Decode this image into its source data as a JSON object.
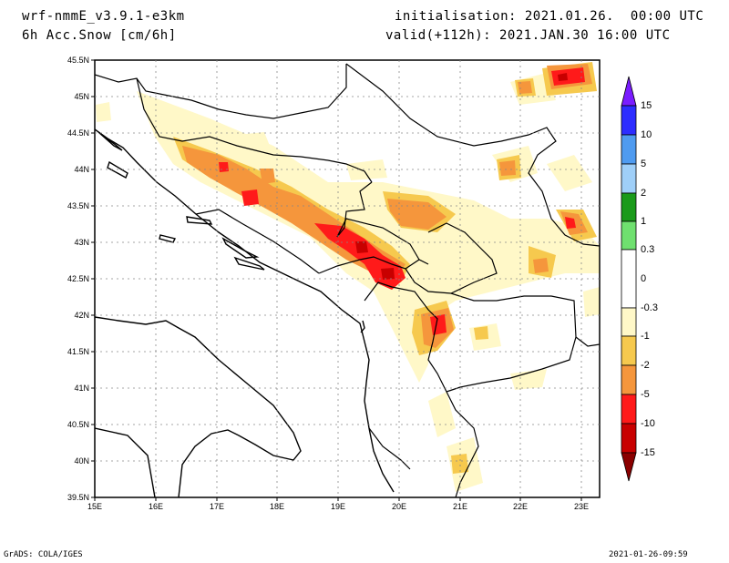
{
  "header": {
    "model": "wrf-nmmE_v3.9.1-e3km",
    "variable": "6h Acc.Snow [cm/6h]",
    "initialisation": "initialisation: 2021.01.26.  00:00 UTC",
    "valid": "valid(+112h): 2021.JAN.30 16:00 UTC"
  },
  "map": {
    "lat_labels": [
      "45.5N",
      "45N",
      "44.5N",
      "44N",
      "43.5N",
      "43N",
      "42.5N",
      "42N",
      "41.5N",
      "41N",
      "40.5N",
      "40N",
      "39.5N"
    ],
    "lon_labels": [
      "15E",
      "16E",
      "17E",
      "18E",
      "19E",
      "20E",
      "21E",
      "22E",
      "23E"
    ],
    "extent": {
      "lon": [
        15,
        23.3
      ],
      "lat": [
        39.5,
        45.5
      ]
    }
  },
  "colorbar": {
    "levels": [
      "15",
      "10",
      "5",
      "2",
      "1",
      "0.3",
      "0",
      "-0.3",
      "-1",
      "-2",
      "-5",
      "-10",
      "-15"
    ],
    "colors": [
      "#7a1cff",
      "#2d2dff",
      "#4f9bf0",
      "#9fcff8",
      "#1a9a1a",
      "#6fe06f",
      "#ffffff",
      "#fff8c8",
      "#f6c94e",
      "#f5963c",
      "#ff1a1a",
      "#c80000",
      "#8a0000"
    ]
  },
  "footer": {
    "left": "GrADS: COLA/IGES",
    "right": "2021-01-26-09:59"
  }
}
